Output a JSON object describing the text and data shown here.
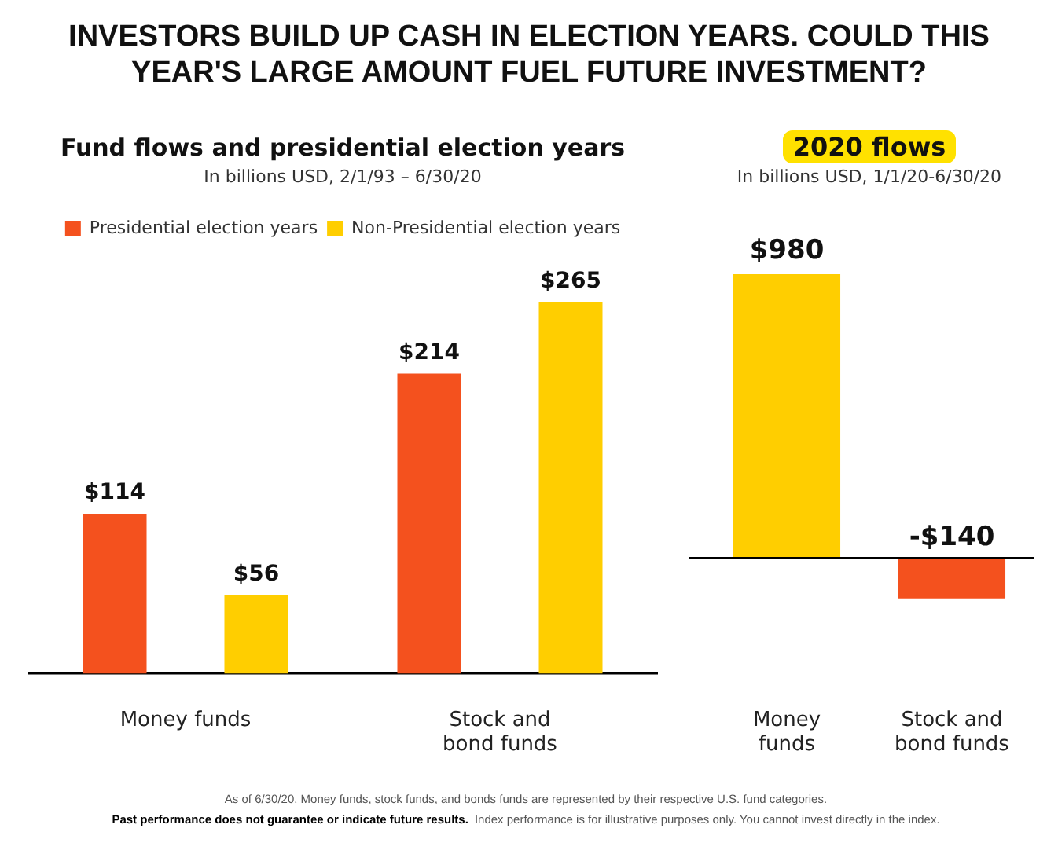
{
  "chart_data": [
    {
      "type": "other",
      "title": "INVESTORS BUILD UP CASH IN ELECTION YEARS.  COULD THIS YEAR'S LARGE AMOUNT FUEL FUTURE INVESTMENT?",
      "annotations": [
        "As of 6/30/20.  Money funds, stock funds, and bonds funds are represented by their respective U.S. fund categories.",
        "Past performance does not guarantee or indicate future results.",
        "Index performance is for illustrative purposes only. You cannot invest directly in the index."
      ]
    },
    {
      "type": "bar",
      "title": "Fund flows and presidential election years",
      "subtitle": "In billions USD, 2/1/93 – 6/30/20",
      "categories": [
        "Money funds",
        "Stock and bond funds"
      ],
      "series": [
        {
          "name": "Presidential election years",
          "color": "#f4511e",
          "values": [
            114,
            214
          ],
          "value_labels": [
            "$114",
            "$214"
          ]
        },
        {
          "name": "Non-Presidential election years",
          "color": "#ffce00",
          "values": [
            56,
            265
          ],
          "value_labels": [
            "$56",
            "$265"
          ]
        }
      ],
      "tick_labels": "x",
      "legend": "top"
    },
    {
      "type": "bar",
      "title": "2020 flows",
      "subtitle": "In billions USD, 1/1/20-6/30/20",
      "categories": [
        "Money funds",
        "Stock and bond funds"
      ],
      "values": [
        980,
        -140
      ],
      "value_labels": [
        "$980",
        "-$140"
      ],
      "colors": [
        "#ffce00",
        "#f4511e"
      ],
      "tick_labels": "x",
      "ref_lines": [
        {
          "axis": "y",
          "value": 0,
          "color": "#000000"
        }
      ]
    }
  ]
}
